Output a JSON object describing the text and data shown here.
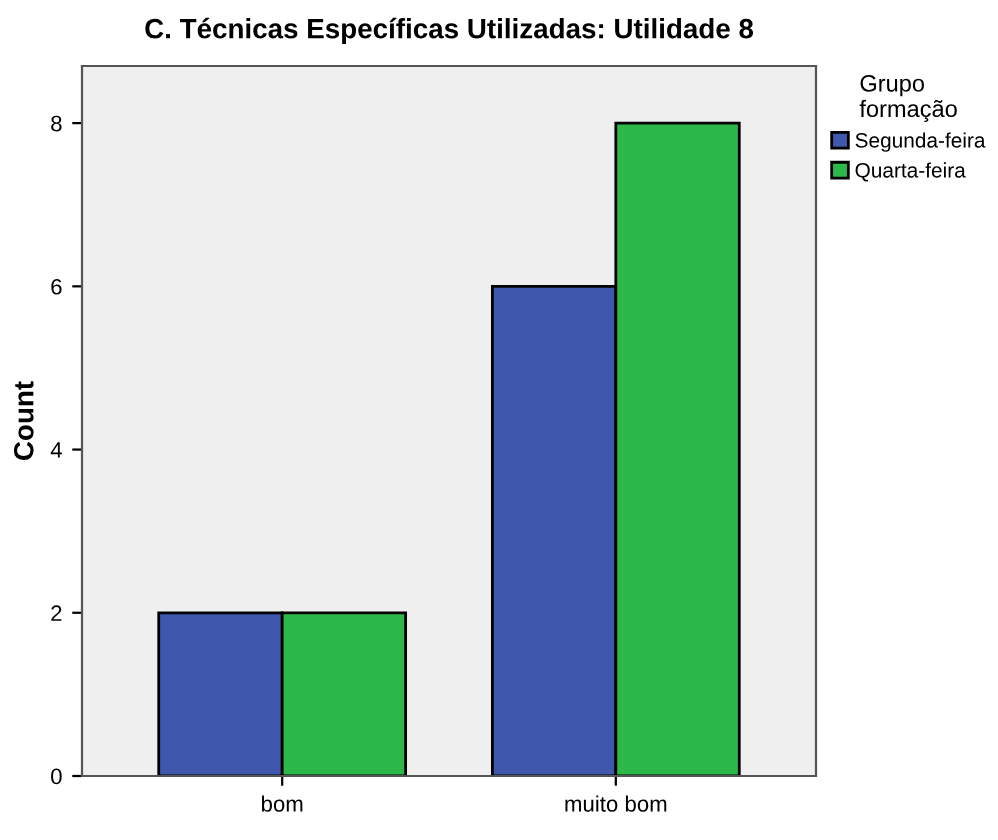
{
  "chart_data": {
    "type": "bar",
    "title": "C. Técnicas Específicas Utilizadas: Utilidade 8",
    "ylabel": "Count",
    "legend_title": "Grupo\nformação",
    "categories": [
      "bom",
      "muito bom"
    ],
    "series": [
      {
        "name": "Segunda-feira",
        "color": "#3f58ad",
        "values": [
          2,
          6
        ]
      },
      {
        "name": "Quarta-feira",
        "color": "#2db84a",
        "values": [
          2,
          8
        ]
      }
    ],
    "ylim": [
      0,
      8.7
    ],
    "yticks": [
      0,
      2,
      4,
      6,
      8
    ],
    "grid": false,
    "legend": "right"
  }
}
